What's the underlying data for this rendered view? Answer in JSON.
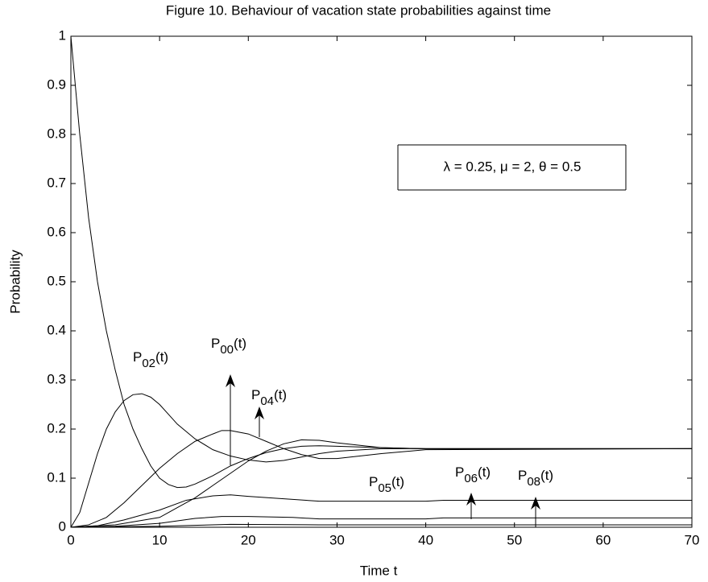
{
  "chart_data": {
    "type": "line",
    "title": "Figure 10. Behaviour of vacation state probabilities against time",
    "x_label": "Time t",
    "y_label": "Probability",
    "xlim": [
      0,
      70
    ],
    "ylim": [
      0,
      1
    ],
    "xticks": [
      0,
      10,
      20,
      30,
      40,
      50,
      60,
      70
    ],
    "yticks": [
      0,
      0.1,
      0.2,
      0.3,
      0.4,
      0.5,
      0.6,
      0.7,
      0.8,
      0.9,
      1
    ],
    "parameter_box": "λ = 0.25, μ = 2, θ = 0.5",
    "annotations": [
      {
        "base": "P",
        "sub": "02",
        "tail": "(t)"
      },
      {
        "base": "P",
        "sub": "00",
        "tail": "(t)"
      },
      {
        "base": "P",
        "sub": "04",
        "tail": "(t)"
      },
      {
        "base": "P",
        "sub": "05",
        "tail": "(t)"
      },
      {
        "base": "P",
        "sub": "06",
        "tail": "(t)"
      },
      {
        "base": "P",
        "sub": "08",
        "tail": "(t)"
      }
    ],
    "series": [
      {
        "color": "#000000",
        "x": [
          0,
          1,
          2,
          3,
          4,
          5,
          6,
          7,
          8,
          9,
          10,
          11,
          12,
          13,
          14,
          16,
          18,
          20,
          22,
          24,
          26,
          28,
          30,
          35,
          40,
          70
        ],
        "values": [
          1,
          0.8,
          0.63,
          0.5,
          0.4,
          0.32,
          0.25,
          0.2,
          0.16,
          0.125,
          0.1,
          0.087,
          0.081,
          0.082,
          0.088,
          0.105,
          0.125,
          0.14,
          0.152,
          0.16,
          0.165,
          0.166,
          0.165,
          0.162,
          0.16,
          0.16
        ]
      },
      {
        "color": "#000000",
        "x": [
          0,
          1,
          2,
          3,
          4,
          5,
          6,
          7,
          8,
          9,
          10,
          11,
          12,
          14,
          16,
          18,
          20,
          22,
          24,
          26,
          28,
          30,
          35,
          40,
          70
        ],
        "values": [
          0,
          0.03,
          0.09,
          0.15,
          0.2,
          0.235,
          0.258,
          0.27,
          0.272,
          0.265,
          0.25,
          0.23,
          0.21,
          0.18,
          0.158,
          0.145,
          0.137,
          0.133,
          0.136,
          0.143,
          0.15,
          0.155,
          0.16,
          0.16,
          0.16
        ]
      },
      {
        "color": "#000000",
        "x": [
          0,
          2,
          4,
          6,
          8,
          10,
          12,
          14,
          16,
          17,
          18,
          20,
          22,
          24,
          26,
          28,
          30,
          35,
          40,
          70
        ],
        "values": [
          0,
          0.005,
          0.02,
          0.05,
          0.085,
          0.12,
          0.15,
          0.175,
          0.19,
          0.197,
          0.197,
          0.19,
          0.175,
          0.16,
          0.148,
          0.14,
          0.14,
          0.15,
          0.158,
          0.16
        ]
      },
      {
        "color": "#000000",
        "x": [
          0,
          5,
          10,
          12,
          14,
          16,
          18,
          20,
          22,
          24,
          26,
          28,
          30,
          35,
          40,
          70
        ],
        "values": [
          0,
          0.005,
          0.02,
          0.04,
          0.06,
          0.085,
          0.11,
          0.135,
          0.155,
          0.17,
          0.178,
          0.177,
          0.172,
          0.162,
          0.16,
          0.16
        ]
      },
      {
        "color": "#000000",
        "x": [
          0,
          3,
          6,
          10,
          13,
          16,
          18,
          20,
          24,
          28,
          40,
          42,
          70
        ],
        "values": [
          0,
          0.003,
          0.015,
          0.035,
          0.055,
          0.064,
          0.066,
          0.063,
          0.058,
          0.053,
          0.053,
          0.055,
          0.055
        ]
      },
      {
        "color": "#000000",
        "x": [
          0,
          5,
          10,
          14,
          17,
          20,
          25,
          28,
          40,
          42,
          70
        ],
        "values": [
          0,
          0.002,
          0.008,
          0.018,
          0.022,
          0.022,
          0.02,
          0.017,
          0.017,
          0.019,
          0.019
        ]
      },
      {
        "color": "#000000",
        "x": [
          0,
          10,
          18,
          28,
          70
        ],
        "values": [
          0,
          0.002,
          0.006,
          0.005,
          0.005
        ]
      }
    ]
  }
}
